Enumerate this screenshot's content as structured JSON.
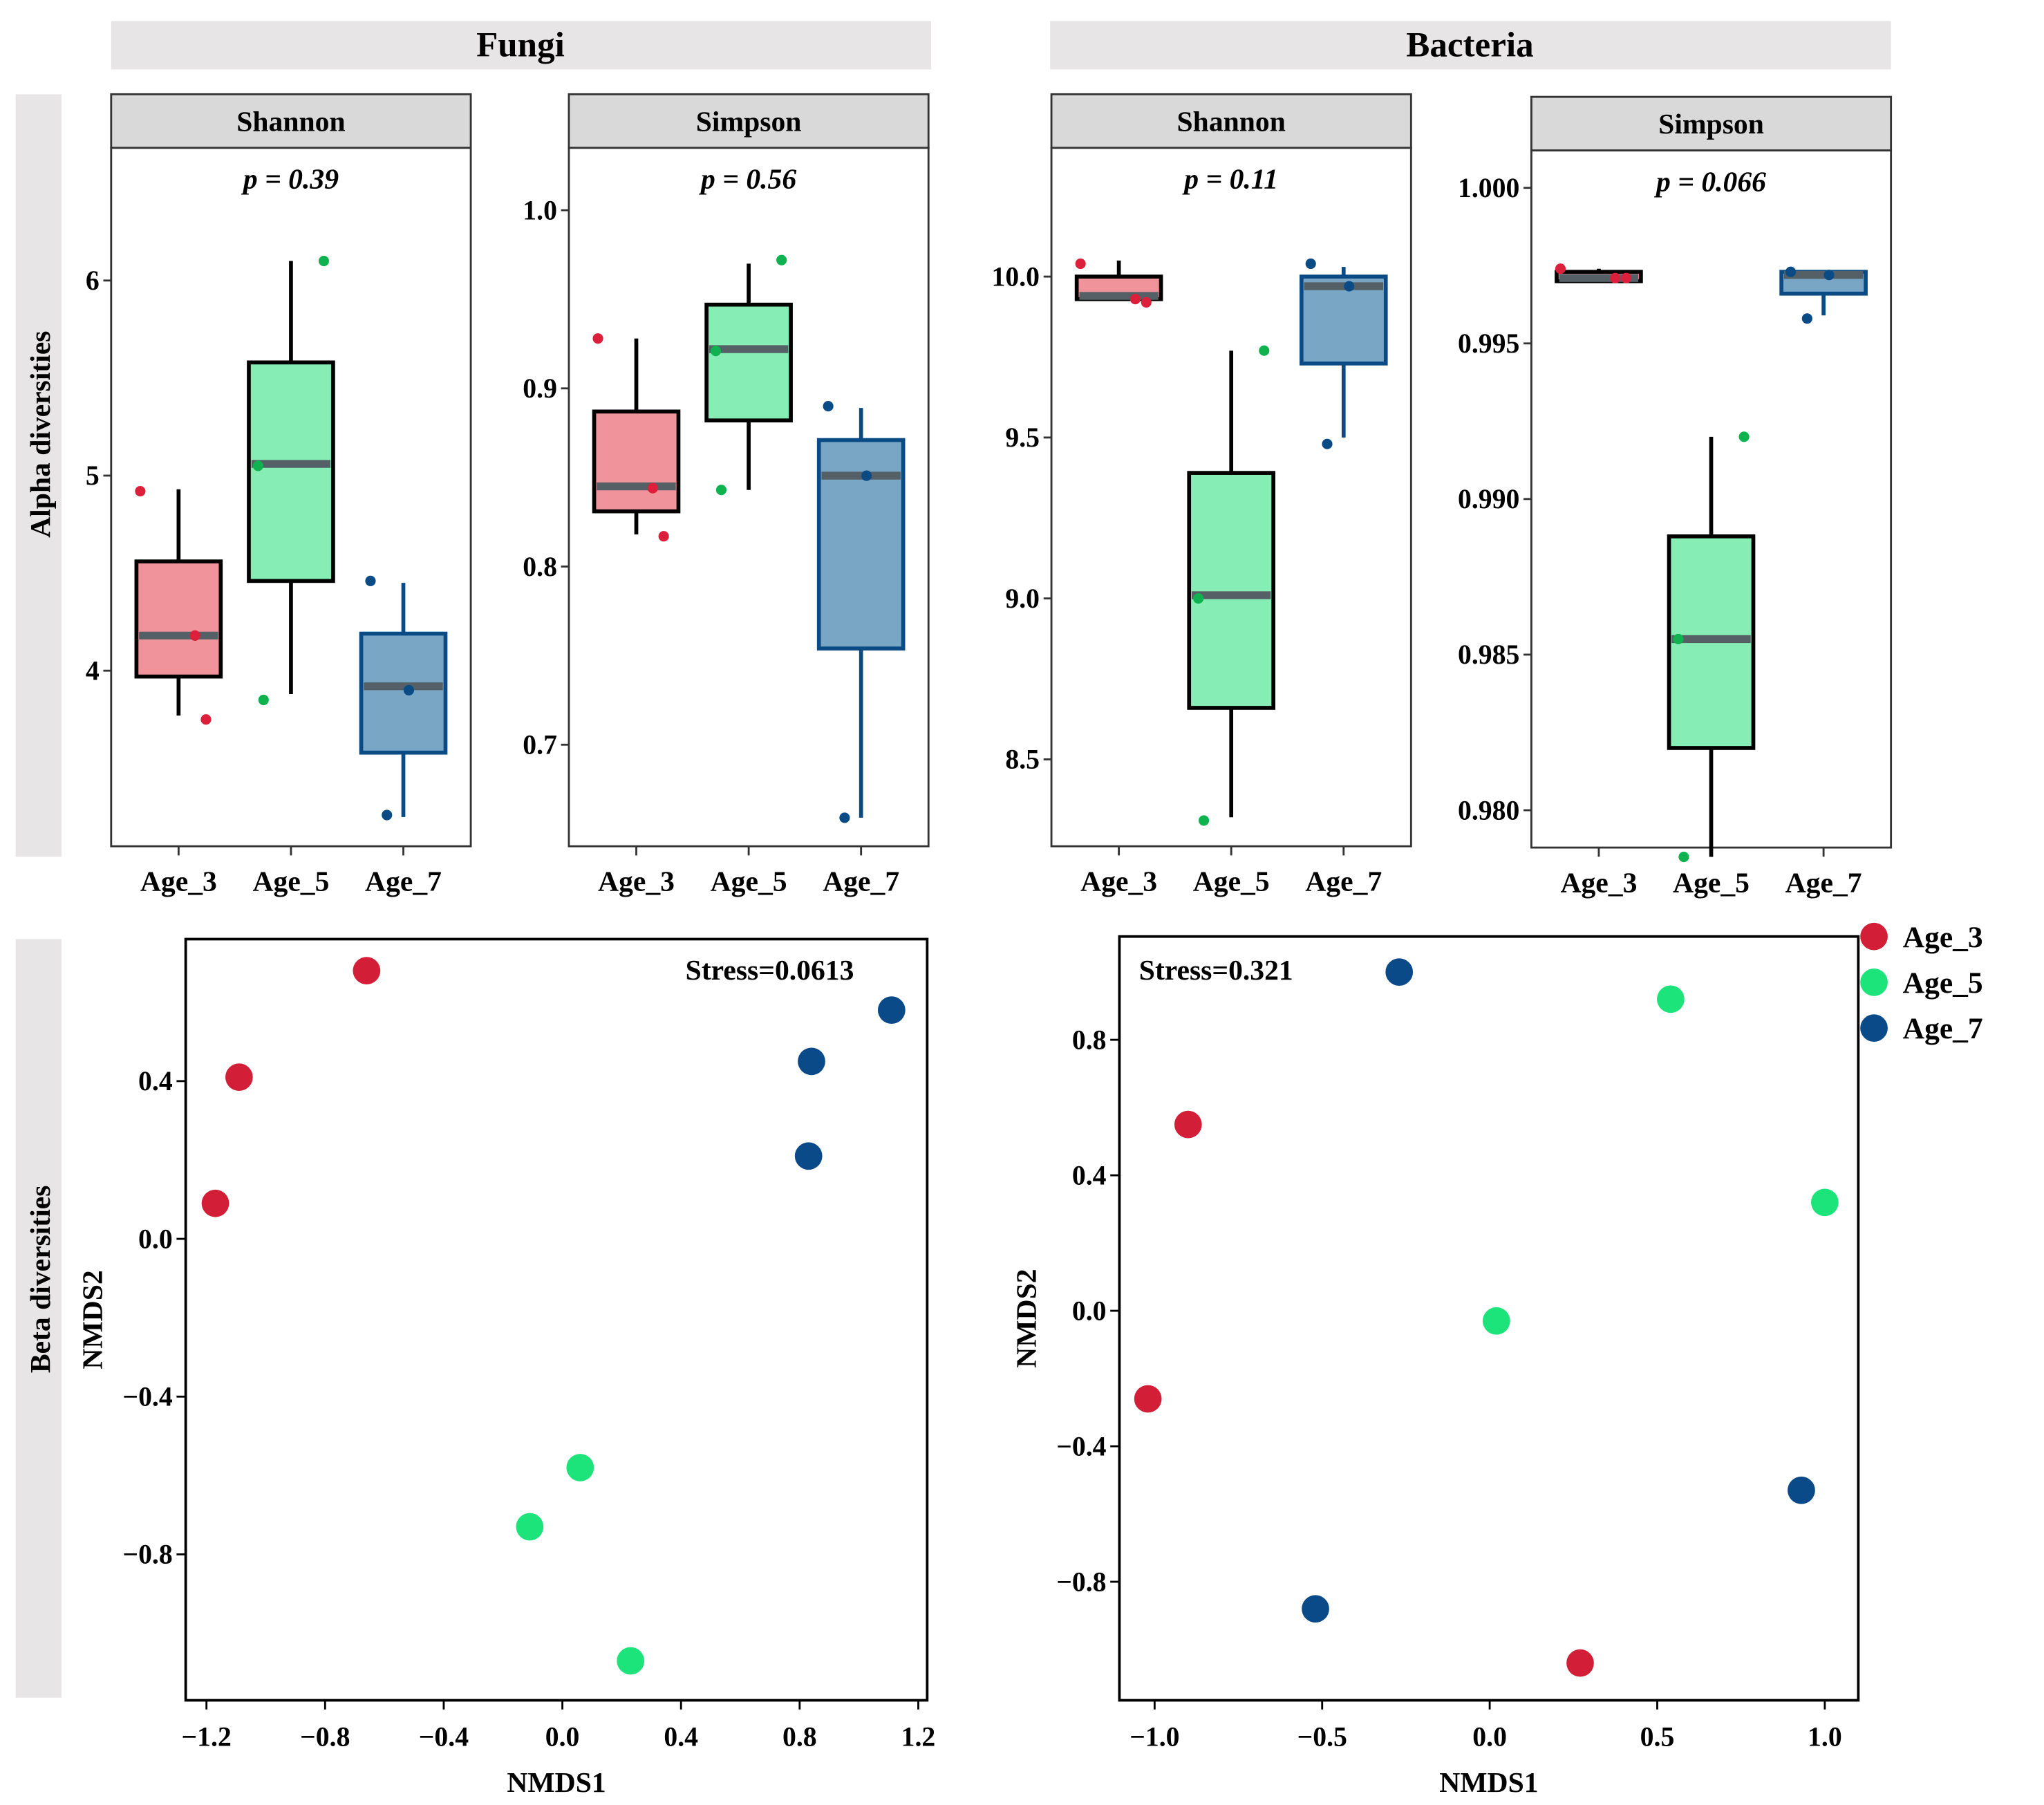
{
  "strips": {
    "fungi": "Fungi",
    "bacteria": "Bacteria",
    "alpha": "Alpha diversities",
    "beta": "Beta diversities"
  },
  "colors": {
    "Age_3": {
      "point": "#dc1f3a",
      "fill": "#f0939a",
      "line": "#000000",
      "nmds": "#d21f37"
    },
    "Age_5": {
      "point": "#0fb24f",
      "fill": "#86eeb4",
      "line": "#000000",
      "nmds": "#1de47a"
    },
    "Age_7": {
      "point": "#0a4a85",
      "fill": "#7aa6c6",
      "line": "#0a4a85",
      "nmds": "#0b4a88"
    },
    "median": "#556066",
    "strip": "#e8e5e6",
    "facet_strip": "#d9d9d9"
  },
  "legend": [
    "Age_3",
    "Age_5",
    "Age_7"
  ],
  "chart_data": [
    {
      "type": "box",
      "group": "Fungi",
      "title": "Shannon",
      "pvalue": "p = 0.39",
      "categories": [
        "Age_3",
        "Age_5",
        "Age_7"
      ],
      "ylim": [
        3.1,
        6.68
      ],
      "yticks": [
        "4",
        "5",
        "6"
      ],
      "ytick_values": [
        4,
        5,
        6
      ],
      "ylabel": "Alpha diversities",
      "boxes": [
        {
          "q1": 3.97,
          "median": 4.18,
          "q3": 4.56,
          "low": 3.77,
          "high": 4.93,
          "points": [
            4.92,
            4.18,
            3.75
          ]
        },
        {
          "q1": 4.46,
          "median": 5.06,
          "q3": 5.58,
          "low": 3.88,
          "high": 6.1,
          "points": [
            6.1,
            5.05,
            3.85
          ]
        },
        {
          "q1": 3.58,
          "median": 3.92,
          "q3": 4.19,
          "low": 3.25,
          "high": 4.45,
          "points": [
            4.46,
            3.9,
            3.26
          ]
        }
      ]
    },
    {
      "type": "box",
      "group": "Fungi",
      "title": "Simpson",
      "pvalue": "p = 0.56",
      "categories": [
        "Age_3",
        "Age_5",
        "Age_7"
      ],
      "ylim": [
        0.643,
        1.035
      ],
      "yticks": [
        "0.7",
        "0.8",
        "0.9",
        "1.0"
      ],
      "ytick_values": [
        0.7,
        0.8,
        0.9,
        1.0
      ],
      "boxes": [
        {
          "q1": 0.831,
          "median": 0.845,
          "q3": 0.887,
          "low": 0.818,
          "high": 0.928,
          "points": [
            0.928,
            0.844,
            0.817
          ]
        },
        {
          "q1": 0.882,
          "median": 0.922,
          "q3": 0.947,
          "low": 0.843,
          "high": 0.97,
          "points": [
            0.972,
            0.921,
            0.843
          ]
        },
        {
          "q1": 0.754,
          "median": 0.851,
          "q3": 0.871,
          "low": 0.659,
          "high": 0.889,
          "points": [
            0.89,
            0.851,
            0.659
          ]
        }
      ]
    },
    {
      "type": "box",
      "group": "Bacteria",
      "title": "Shannon",
      "pvalue": "p = 0.11",
      "categories": [
        "Age_3",
        "Age_5",
        "Age_7"
      ],
      "ylim": [
        8.23,
        10.4
      ],
      "yticks": [
        "8.5",
        "9.0",
        "9.5",
        "10.0"
      ],
      "ytick_values": [
        8.5,
        9.0,
        9.5,
        10.0
      ],
      "boxes": [
        {
          "q1": 9.93,
          "median": 9.94,
          "q3": 10.0,
          "low": 9.93,
          "high": 10.05,
          "points": [
            10.04,
            9.93,
            9.92
          ]
        },
        {
          "q1": 8.66,
          "median": 9.01,
          "q3": 9.39,
          "low": 8.32,
          "high": 9.77,
          "points": [
            9.77,
            9.0,
            8.31
          ]
        },
        {
          "q1": 9.73,
          "median": 9.97,
          "q3": 10.0,
          "low": 9.5,
          "high": 10.03,
          "points": [
            10.04,
            9.97,
            9.48
          ]
        }
      ]
    },
    {
      "type": "box",
      "group": "Bacteria",
      "title": "Simpson",
      "pvalue": "p = 0.066",
      "categories": [
        "Age_3",
        "Age_5",
        "Age_7"
      ],
      "ylim": [
        0.9788,
        1.0012
      ],
      "yticks": [
        "0.980",
        "0.985",
        "0.990",
        "0.995",
        "1.000"
      ],
      "ytick_values": [
        0.98,
        0.985,
        0.99,
        0.995,
        1.0
      ],
      "boxes": [
        {
          "q1": 0.997,
          "median": 0.9971,
          "q3": 0.9973,
          "low": 0.997,
          "high": 0.9974,
          "points": [
            0.9974,
            0.9971,
            0.9971
          ]
        },
        {
          "q1": 0.982,
          "median": 0.9855,
          "q3": 0.9888,
          "low": 0.9785,
          "high": 0.992,
          "points": [
            0.992,
            0.9855,
            0.9785
          ]
        },
        {
          "q1": 0.9966,
          "median": 0.9972,
          "q3": 0.9973,
          "low": 0.9959,
          "high": 0.9973,
          "points": [
            0.9973,
            0.9972,
            0.9958
          ]
        }
      ]
    },
    {
      "type": "scatter",
      "group": "Fungi",
      "annotation": "Stress=0.0613",
      "xlabel": "NMDS1",
      "ylabel": "NMDS2",
      "panel_label": "Beta diversities",
      "xlim": [
        -1.27,
        1.23
      ],
      "ylim": [
        -1.17,
        0.76
      ],
      "xticks": [
        "−1.2",
        "−0.8",
        "−0.4",
        "0.0",
        "0.4",
        "0.8",
        "1.2"
      ],
      "xtick_values": [
        -1.2,
        -0.8,
        -0.4,
        0,
        0.4,
        0.8,
        1.2
      ],
      "yticks": [
        "−0.8",
        "−0.4",
        "0.0",
        "0.4"
      ],
      "ytick_values": [
        -0.8,
        -0.4,
        0,
        0.4
      ],
      "points": [
        {
          "group": "Age_3",
          "x": -0.66,
          "y": 0.68
        },
        {
          "group": "Age_3",
          "x": -1.09,
          "y": 0.41
        },
        {
          "group": "Age_3",
          "x": -1.17,
          "y": 0.09
        },
        {
          "group": "Age_7",
          "x": 1.11,
          "y": 0.58
        },
        {
          "group": "Age_7",
          "x": 0.84,
          "y": 0.45
        },
        {
          "group": "Age_7",
          "x": 0.83,
          "y": 0.21
        },
        {
          "group": "Age_5",
          "x": 0.06,
          "y": -0.58
        },
        {
          "group": "Age_5",
          "x": -0.11,
          "y": -0.73
        },
        {
          "group": "Age_5",
          "x": 0.23,
          "y": -1.07
        }
      ]
    },
    {
      "type": "scatter",
      "group": "Bacteria",
      "annotation": "Stress=0.321",
      "xlabel": "NMDS1",
      "ylabel": "NMDS2",
      "xlim": [
        -1.105,
        1.1
      ],
      "ylim": [
        -1.15,
        1.105
      ],
      "xticks": [
        "−1.0",
        "−0.5",
        "0.0",
        "0.5",
        "1.0"
      ],
      "xtick_values": [
        -1,
        -0.5,
        0,
        0.5,
        1
      ],
      "yticks": [
        "−0.8",
        "−0.4",
        "0.0",
        "0.4",
        "0.8"
      ],
      "ytick_values": [
        -0.8,
        -0.4,
        0,
        0.4,
        0.8
      ],
      "points": [
        {
          "group": "Age_7",
          "x": -0.27,
          "y": 1.0
        },
        {
          "group": "Age_5",
          "x": 0.54,
          "y": 0.92
        },
        {
          "group": "Age_3",
          "x": -0.9,
          "y": 0.55
        },
        {
          "group": "Age_5",
          "x": 1.0,
          "y": 0.32
        },
        {
          "group": "Age_5",
          "x": 0.02,
          "y": -0.03
        },
        {
          "group": "Age_3",
          "x": -1.02,
          "y": -0.26
        },
        {
          "group": "Age_7",
          "x": 0.93,
          "y": -0.53
        },
        {
          "group": "Age_7",
          "x": -0.52,
          "y": -0.88
        },
        {
          "group": "Age_3",
          "x": 0.27,
          "y": -1.04
        }
      ]
    }
  ]
}
